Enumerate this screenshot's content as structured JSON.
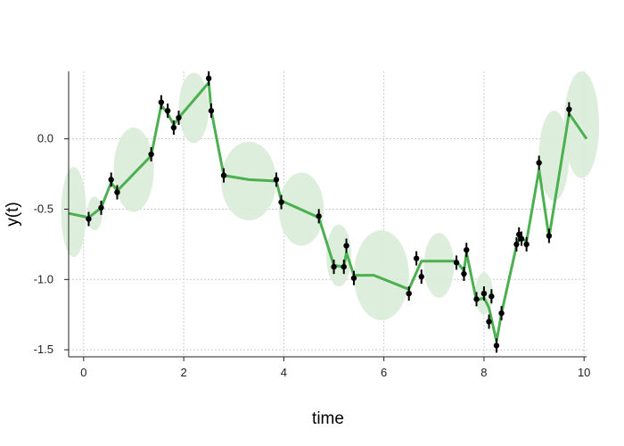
{
  "chart_data": {
    "type": "line",
    "title": "",
    "xlabel": "time",
    "ylabel": "y(t)",
    "xlim": [
      -0.3,
      10.05
    ],
    "ylim": [
      -1.55,
      0.48
    ],
    "x_ticks": [
      0,
      2,
      4,
      6,
      8,
      10
    ],
    "x_tick_labels": [
      "0",
      "2",
      "4",
      "6",
      "8",
      "10"
    ],
    "y_ticks": [
      0.0,
      -0.5,
      -1.0,
      -1.5
    ],
    "y_tick_labels": [
      "0.0",
      "-0.5",
      "-1.0",
      "-1.5"
    ],
    "grid": true,
    "colors": {
      "line": "#4caf50",
      "band": "#d9ecd8",
      "points": "#000000",
      "grid": "#cccccc",
      "axis": "#222222"
    },
    "fit_line": {
      "x": [
        -0.3,
        0.1,
        0.35,
        0.55,
        0.67,
        1.35,
        1.55,
        1.68,
        1.8,
        1.9,
        2.5,
        2.55,
        2.8,
        3.3,
        3.85,
        3.95,
        4.7,
        5.0,
        5.2,
        5.25,
        5.4,
        5.8,
        6.5,
        6.75,
        7.1,
        7.45,
        7.6,
        7.65,
        7.85,
        8.0,
        8.1,
        8.25,
        8.35,
        8.65,
        8.7,
        8.75,
        8.85,
        9.1,
        9.3,
        9.7,
        10.05
      ],
      "y": [
        -0.53,
        -0.56,
        -0.49,
        -0.31,
        -0.37,
        -0.12,
        0.24,
        0.18,
        0.1,
        0.15,
        0.4,
        0.2,
        -0.26,
        -0.29,
        -0.3,
        -0.44,
        -0.56,
        -0.9,
        -0.91,
        -0.81,
        -0.97,
        -0.97,
        -1.07,
        -0.87,
        -0.87,
        -0.87,
        -0.94,
        -0.81,
        -1.15,
        -1.13,
        -1.2,
        -1.44,
        -1.24,
        -0.76,
        -0.71,
        -0.71,
        -0.73,
        -0.22,
        -0.7,
        0.18,
        0.0
      ]
    },
    "observations": {
      "x": [
        0.1,
        0.35,
        0.55,
        0.67,
        1.35,
        1.55,
        1.68,
        1.8,
        1.9,
        2.5,
        2.55,
        2.8,
        3.85,
        3.95,
        4.7,
        5.0,
        5.2,
        5.25,
        5.4,
        6.5,
        6.65,
        6.75,
        7.45,
        7.6,
        7.65,
        7.85,
        8.0,
        8.1,
        8.15,
        8.25,
        8.35,
        8.65,
        8.7,
        8.75,
        8.85,
        9.1,
        9.3,
        9.7
      ],
      "y": [
        -0.57,
        -0.49,
        -0.29,
        -0.38,
        -0.11,
        0.26,
        0.2,
        0.08,
        0.15,
        0.43,
        0.2,
        -0.26,
        -0.29,
        -0.45,
        -0.55,
        -0.91,
        -0.91,
        -0.76,
        -0.99,
        -1.1,
        -0.85,
        -0.98,
        -0.88,
        -0.96,
        -0.79,
        -1.14,
        -1.1,
        -1.3,
        -1.12,
        -1.47,
        -1.24,
        -0.75,
        -0.68,
        -0.71,
        -0.75,
        -0.17,
        -0.69,
        0.21
      ]
    },
    "uncertainty_ellipses": [
      {
        "cx": -0.2,
        "cy": -0.52,
        "rx": 0.25,
        "ry": 0.32
      },
      {
        "cx": 0.22,
        "cy": -0.53,
        "rx": 0.15,
        "ry": 0.12
      },
      {
        "cx": 1.0,
        "cy": -0.22,
        "rx": 0.4,
        "ry": 0.3
      },
      {
        "cx": 2.2,
        "cy": 0.22,
        "rx": 0.3,
        "ry": 0.25
      },
      {
        "cx": 3.3,
        "cy": -0.3,
        "rx": 0.55,
        "ry": 0.28
      },
      {
        "cx": 4.35,
        "cy": -0.5,
        "rx": 0.45,
        "ry": 0.26
      },
      {
        "cx": 5.1,
        "cy": -0.83,
        "rx": 0.25,
        "ry": 0.22
      },
      {
        "cx": 5.95,
        "cy": -0.97,
        "rx": 0.55,
        "ry": 0.32
      },
      {
        "cx": 7.1,
        "cy": -0.9,
        "rx": 0.3,
        "ry": 0.23
      },
      {
        "cx": 8.0,
        "cy": -1.1,
        "rx": 0.18,
        "ry": 0.15
      },
      {
        "cx": 9.4,
        "cy": -0.12,
        "rx": 0.3,
        "ry": 0.32
      },
      {
        "cx": 9.95,
        "cy": 0.1,
        "rx": 0.35,
        "ry": 0.38
      }
    ]
  }
}
